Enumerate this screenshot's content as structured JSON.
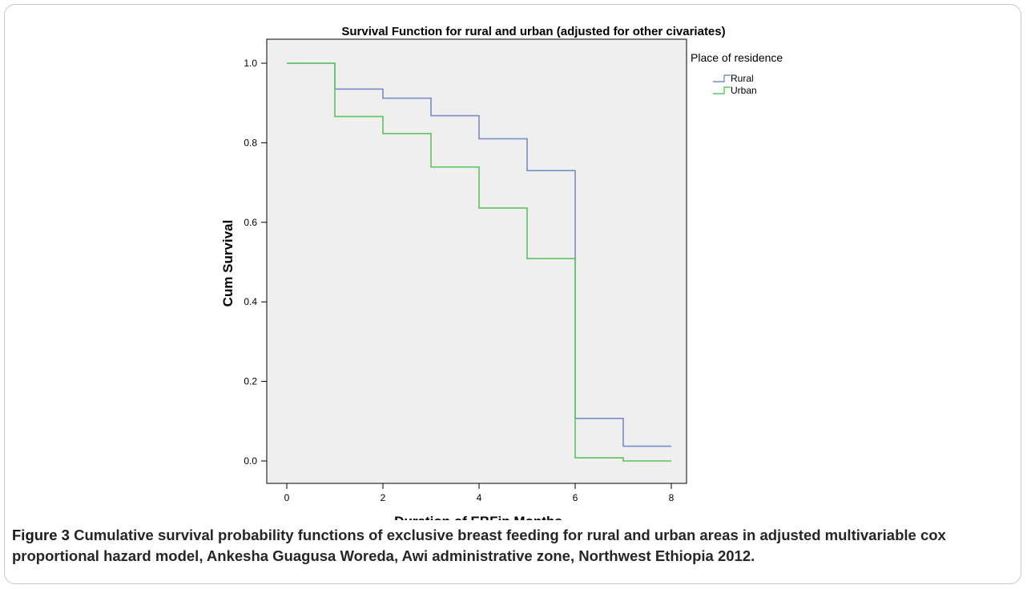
{
  "chart_data": {
    "type": "line",
    "step": true,
    "title": "Survival Function for rural and urban (adjusted for other civariates)",
    "xlabel": "Duration of EBFin Months",
    "ylabel": "Cum Survival",
    "xlim": [
      0,
      8
    ],
    "ylim": [
      0,
      1.0
    ],
    "xticks": [
      "0",
      "2",
      "4",
      "6",
      "8"
    ],
    "yticks": [
      "0.0",
      "0.2",
      "0.4",
      "0.6",
      "0.8",
      "1.0"
    ],
    "grid": false,
    "legend_title": "Place of residence",
    "legend_position": "right",
    "series": [
      {
        "name": "Rural",
        "color": "#7b8cc9",
        "x": [
          0,
          1,
          2,
          3,
          4,
          5,
          6,
          7,
          8
        ],
        "values": [
          1.0,
          0.935,
          0.912,
          0.868,
          0.81,
          0.73,
          0.107,
          0.037,
          0.037
        ]
      },
      {
        "name": "Urban",
        "color": "#5fc45f",
        "x": [
          0,
          1,
          2,
          3,
          4,
          5,
          6,
          7,
          8
        ],
        "values": [
          1.0,
          0.866,
          0.823,
          0.739,
          0.636,
          0.509,
          0.008,
          0.0,
          0.0
        ]
      }
    ]
  },
  "caption": {
    "label": "Figure 3",
    "text": " Cumulative survival probability functions of exclusive breast feeding for rural and urban areas in adjusted multivariable cox proportional hazard model, Ankesha Guagusa Woreda, Awi administrative zone, Northwest Ethiopia 2012."
  }
}
